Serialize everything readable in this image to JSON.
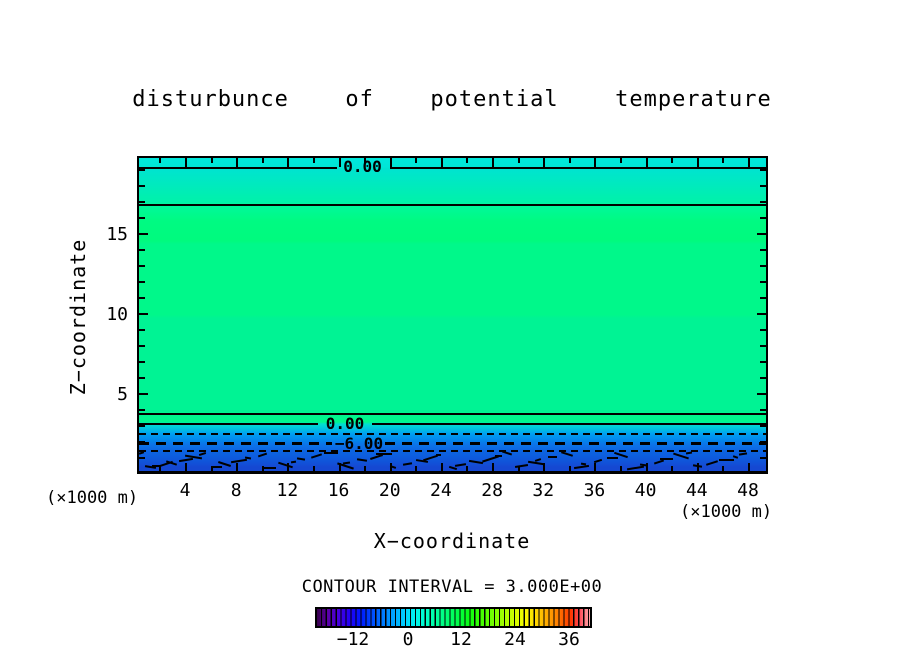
{
  "title": "disturbunce  of  potential  temperature",
  "axes": {
    "x_label": "X−coordinate",
    "z_label": "Z−coordinate",
    "x_unit_left": "(×1000 m)",
    "x_unit_right": "(×1000 m)",
    "x_ticks": [
      "4",
      "8",
      "12",
      "16",
      "20",
      "24",
      "28",
      "32",
      "36",
      "40",
      "44",
      "48"
    ],
    "z_ticks": [
      "15",
      "10",
      "5"
    ]
  },
  "contours": {
    "labels": [
      "0.00",
      "0.00",
      "−6.00"
    ]
  },
  "footer": {
    "contour_interval": "CONTOUR INTERVAL = 3.000E+00"
  },
  "colorbar": {
    "ticks": [
      "−12",
      "0",
      "12",
      "24",
      "36"
    ]
  },
  "chart_data": {
    "type": "heatmap",
    "title": "disturbunce of potential temperature",
    "xlabel": "X−coordinate (×1000 m)",
    "ylabel": "Z−coordinate (×1000 m)",
    "xlim": [
      0,
      50
    ],
    "ylim": [
      0,
      20
    ],
    "x_ticks": [
      4,
      8,
      12,
      16,
      20,
      24,
      28,
      32,
      36,
      40,
      44,
      48
    ],
    "y_ticks": [
      5,
      10,
      15
    ],
    "contour_interval": 3.0,
    "colorbar_ticks": [
      -12,
      0,
      12,
      24,
      36
    ],
    "colorbar_range_estimate": [
      -21,
      42
    ],
    "labeled_contours": [
      {
        "value": 0.0,
        "z": 19.1,
        "style": "solid",
        "labeled": true
      },
      {
        "value": 3.0,
        "z": 16.8,
        "style": "solid",
        "labeled": false
      },
      {
        "value": 3.0,
        "z": 3.8,
        "style": "solid",
        "labeled": false
      },
      {
        "value": 0.0,
        "z": 3.1,
        "style": "solid",
        "labeled": true
      },
      {
        "value": -3.0,
        "z": 2.5,
        "style": "dashed",
        "labeled": false
      },
      {
        "value": -6.0,
        "z": 1.9,
        "style": "dashed",
        "labeled": true
      },
      {
        "value": -9.0,
        "z": 1.2,
        "style": "dashed-irregular",
        "labeled": false
      }
    ],
    "field_description": "Horizontally uniform layered field: turquoise band (~0) at model top near z=19-20, spring-green weakly positive values through mid levels (z=4..17), dropping through 0 near z=3.1 and becoming increasingly negative toward the surface (-6 near z=1.9, noisy -9 contour fragments below z=1.5, deep blue at ground)."
  }
}
